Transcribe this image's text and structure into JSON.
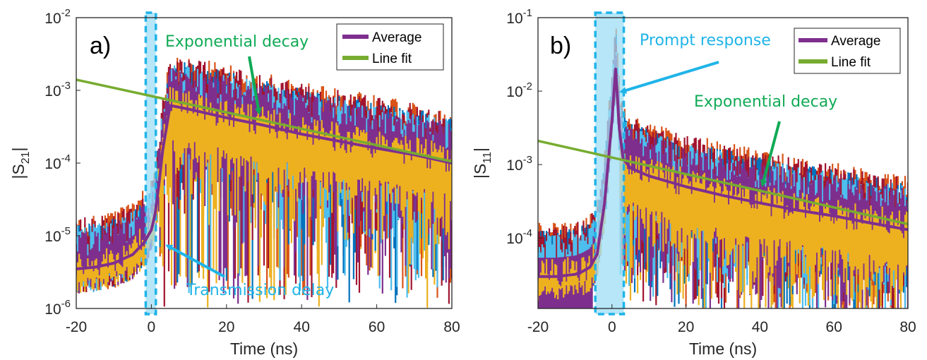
{
  "colors": {
    "average": "#7E2F8E",
    "fit": "#77AC30",
    "teal_annotation": "#1FB4E8",
    "green_annotation": "#10AA55",
    "highlight_fill": "#9DDDF5",
    "noise": [
      "#0072BD",
      "#D95319",
      "#EDB120",
      "#7E2F8E",
      "#77AC30",
      "#4DBEEE",
      "#A2142F"
    ]
  },
  "chart_data": [
    {
      "type": "line",
      "panel_label": "a)",
      "xlabel": "Time (ns)",
      "ylabel_main": "|S",
      "ylabel_sub": "21",
      "ylabel_end": "|",
      "yscale": "log",
      "xlim": [
        -20,
        80
      ],
      "ylim": [
        1e-06,
        0.01
      ],
      "x_ticks": [
        -20,
        0,
        20,
        40,
        60,
        80
      ],
      "y_ticks": [
        {
          "value": 1e-06,
          "base": "10",
          "exp": "-6"
        },
        {
          "value": 1e-05,
          "base": "10",
          "exp": "-5"
        },
        {
          "value": 0.0001,
          "base": "10",
          "exp": "-4"
        },
        {
          "value": 0.001,
          "base": "10",
          "exp": "-3"
        },
        {
          "value": 0.01,
          "base": "10",
          "exp": "-2"
        }
      ],
      "legend": {
        "placement": "top-right",
        "entries": [
          "Average",
          "Line fit"
        ]
      },
      "highlight_band": {
        "x0": -1.5,
        "x1": 1.2
      },
      "series": [
        {
          "name": "Average",
          "x": [
            -20,
            -15,
            -10,
            -5,
            -2,
            0,
            1,
            2,
            3,
            5,
            10,
            20,
            30,
            40,
            50,
            60,
            70,
            80
          ],
          "y": [
            3.5e-06,
            3.7e-06,
            4.2e-06,
            5.5e-06,
            8e-06,
            1.2e-05,
            2e-05,
            5e-05,
            0.00015,
            0.00062,
            0.00055,
            0.00042,
            0.00033,
            0.00025,
            0.0002,
            0.00016,
            0.00013,
            0.0001
          ]
        },
        {
          "name": "Line fit",
          "x": [
            -20,
            80
          ],
          "y": [
            0.0014,
            0.000105
          ]
        }
      ],
      "annotations": [
        {
          "text": "Exponential decay",
          "color": "green",
          "target": [
            27,
            0.00035
          ]
        },
        {
          "text": "Transmission delay",
          "color": "teal",
          "target": [
            1,
            8e-06
          ]
        }
      ]
    },
    {
      "type": "line",
      "panel_label": "b)",
      "xlabel": "Time (ns)",
      "ylabel_main": "|S",
      "ylabel_sub": "11",
      "ylabel_end": "|",
      "yscale": "log",
      "xlim": [
        -20,
        80
      ],
      "ylim": [
        1.1e-05,
        0.1
      ],
      "x_ticks": [
        -20,
        0,
        20,
        40,
        60,
        80
      ],
      "y_ticks": [
        {
          "value": 0.0001,
          "base": "10",
          "exp": "-4"
        },
        {
          "value": 0.001,
          "base": "10",
          "exp": "-3"
        },
        {
          "value": 0.01,
          "base": "10",
          "exp": "-2"
        },
        {
          "value": 0.1,
          "base": "10",
          "exp": "-1"
        }
      ],
      "legend": {
        "placement": "top-right",
        "entries": [
          "Average",
          "Line fit"
        ]
      },
      "highlight_band": {
        "x0": -4.5,
        "x1": 3.2
      },
      "series": [
        {
          "name": "Average",
          "x": [
            -20,
            -15,
            -10,
            -8,
            -6,
            -4,
            -2,
            0,
            1,
            2,
            3,
            5,
            10,
            20,
            30,
            40,
            50,
            60,
            70,
            80
          ],
          "y": [
            3e-05,
            3e-05,
            3.2e-05,
            3.5e-05,
            4e-05,
            6e-05,
            0.0003,
            0.004,
            0.02,
            0.003,
            0.0012,
            0.0009,
            0.0007,
            0.0005,
            0.00038,
            0.0003,
            0.00024,
            0.0002,
            0.00016,
            0.00013
          ]
        },
        {
          "name": "Line fit",
          "x": [
            -20,
            80
          ],
          "y": [
            0.0021,
            0.000155
          ]
        }
      ],
      "annotations": [
        {
          "text": "Prompt response",
          "color": "teal",
          "target": [
            1,
            0.009
          ]
        },
        {
          "text": "Exponential decay",
          "color": "green",
          "target": [
            40,
            0.00035
          ]
        }
      ]
    }
  ]
}
